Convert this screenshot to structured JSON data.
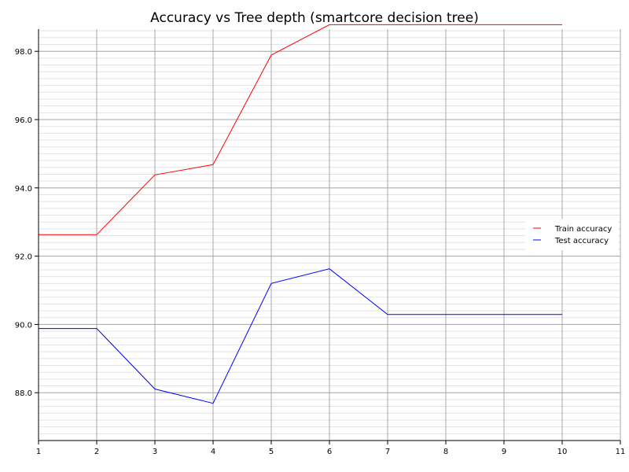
{
  "chart_data": {
    "type": "line",
    "title": "Accuracy vs Tree depth (smartcore decision tree)",
    "xlabel": "",
    "ylabel": "",
    "xlim": [
      1,
      11
    ],
    "ylim": [
      86.6,
      98.65
    ],
    "x_ticks": [
      "1",
      "2",
      "3",
      "4",
      "5",
      "6",
      "7",
      "8",
      "9",
      "10",
      "11"
    ],
    "y_ticks": [
      "88.0",
      "90.0",
      "92.0",
      "94.0",
      "96.0",
      "98.0"
    ],
    "grid": true,
    "legend_position": "right",
    "x": [
      1,
      2,
      3,
      4,
      5,
      6,
      7,
      8,
      9,
      10
    ],
    "series": [
      {
        "name": "Train accuracy",
        "color": "#ff0000",
        "values": [
          92.63,
          92.63,
          94.38,
          94.68,
          97.89,
          98.78,
          98.78,
          98.78,
          98.78,
          98.78
        ]
      },
      {
        "name": "Test accuracy",
        "color": "#0000ff",
        "values": [
          89.88,
          89.88,
          88.11,
          87.69,
          91.2,
          91.63,
          90.29,
          90.29,
          90.29,
          90.29
        ]
      }
    ]
  }
}
